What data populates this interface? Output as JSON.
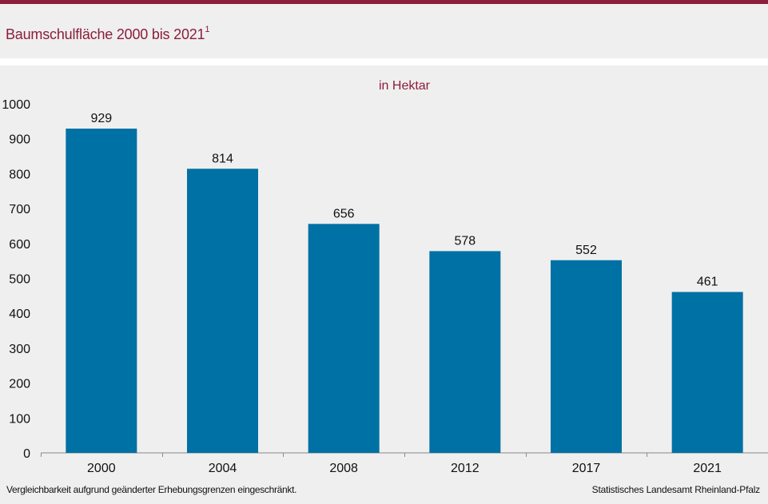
{
  "header": {
    "title": "Baumschulfläche 2000 bis 2021",
    "title_footnote_mark": "1"
  },
  "chart_data": {
    "type": "bar",
    "title": "Baumschulfläche 2000 bis 2021",
    "subtitle": "in Hektar",
    "xlabel": "",
    "ylabel": "",
    "categories": [
      "2000",
      "2004",
      "2008",
      "2012",
      "2017",
      "2021"
    ],
    "values": [
      929,
      814,
      656,
      578,
      552,
      461
    ],
    "data_labels": [
      "929",
      "814",
      "656",
      "578",
      "552",
      "461"
    ],
    "ylim": [
      0,
      1000
    ],
    "yticks": [
      0,
      100,
      200,
      300,
      400,
      500,
      600,
      700,
      800,
      900,
      1000
    ],
    "bar_color": "#0071a4",
    "grid": false,
    "legend": "none"
  },
  "footer": {
    "footnote": "Vergleichbarkeit aufgrund geänderter Erhebungsgrenzen eingeschränkt.",
    "source": "Statistisches Landesamt Rheinland-Pfalz"
  },
  "colors": {
    "accent": "#8c1d3c",
    "bar": "#0071a4",
    "background": "#efefef"
  }
}
